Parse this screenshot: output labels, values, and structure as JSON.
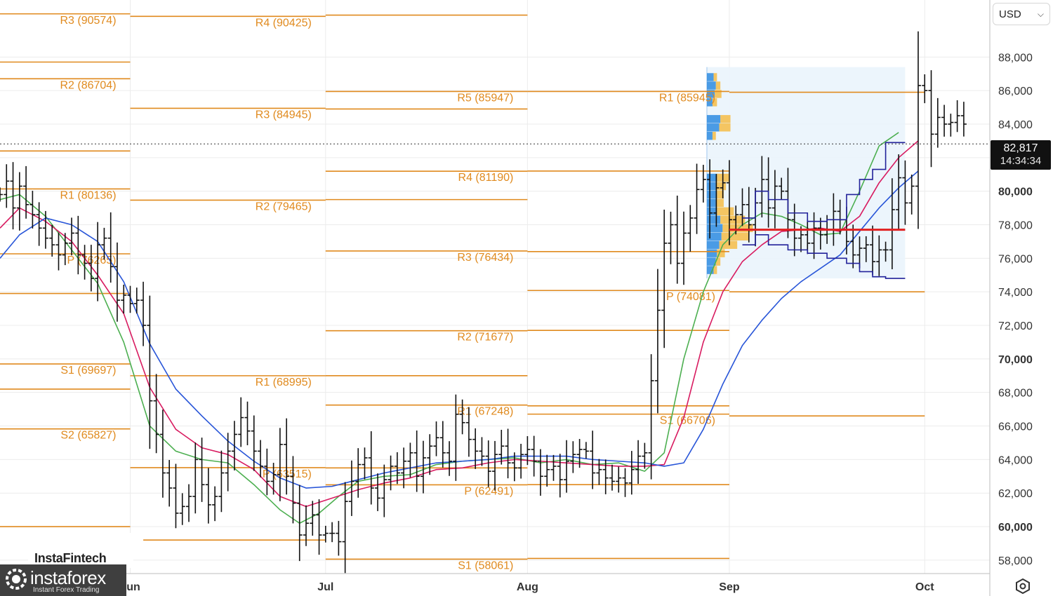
{
  "currency_selector": {
    "value": "USD"
  },
  "current_price": {
    "value": "82,817",
    "countdown": "14:34:34"
  },
  "branding": {
    "top": "InstaFintech",
    "name": "instaforex",
    "tagline": "Instant Forex Trading"
  },
  "colors": {
    "pivot": "#e08a1e",
    "sma_fast": "#4caf50",
    "sma_mid": "#d81b60",
    "sma_slow": "#2855d8",
    "channel": "#22229a",
    "poc": "#e02020",
    "vp_buy": "#2e8be0",
    "vp_sell": "#f6b93b"
  },
  "chart_data": {
    "type": "bar",
    "title": "",
    "y_axis": {
      "ticks": [
        58000,
        60000,
        62000,
        64000,
        66000,
        68000,
        70000,
        72000,
        74000,
        76000,
        78000,
        80000,
        82000,
        84000,
        86000,
        88000
      ],
      "tick_labels": [
        "58,000",
        "60,000",
        "62,000",
        "64,000",
        "66,000",
        "68,000",
        "70,000",
        "72,000",
        "74,000",
        "76,000",
        "78,000",
        "80,000",
        "",
        "84,000",
        "86,000",
        "88,000"
      ],
      "bold": [
        60000,
        70000,
        80000
      ],
      "range": [
        57200,
        91400
      ]
    },
    "x_axis": {
      "ticks": [
        {
          "label": "Jun",
          "day": 31
        },
        {
          "label": "Jul",
          "day": 61
        },
        {
          "label": "Aug",
          "day": 92
        },
        {
          "label": "Sep",
          "day": 123
        },
        {
          "label": "Oct",
          "day": 153
        }
      ],
      "range": [
        11,
        163
      ]
    },
    "pivot_levels": [
      {
        "label": "R3 (90574)",
        "value": 90574,
        "from": 11,
        "to": 31
      },
      {
        "label": "R2 (86704)",
        "value": 86704,
        "from": 11,
        "to": 31
      },
      {
        "label": "R1 (80136)",
        "value": 80136,
        "from": 11,
        "to": 31
      },
      {
        "label": "P (76265)",
        "value": 76265,
        "from": 11,
        "to": 31
      },
      {
        "label": "S1 (69697)",
        "value": 69697,
        "from": 11,
        "to": 31
      },
      {
        "label": "S2 (65827)",
        "value": 65827,
        "from": 11,
        "to": 31
      },
      {
        "label": "R4 (90425)",
        "value": 90425,
        "from": 31,
        "to": 61
      },
      {
        "label": "R3 (84945)",
        "value": 84945,
        "from": 31,
        "to": 61
      },
      {
        "label": "R2 (79465)",
        "value": 79465,
        "from": 31,
        "to": 61
      },
      {
        "label": "R1 (68995)",
        "value": 68995,
        "from": 31,
        "to": 61
      },
      {
        "label": "P (63515)",
        "value": 63515,
        "from": 31,
        "to": 61
      },
      {
        "label": "R5 (85947)",
        "value": 85947,
        "from": 61,
        "to": 92
      },
      {
        "label": "R4 (81190)",
        "value": 81190,
        "from": 61,
        "to": 92
      },
      {
        "label": "R3 (76434)",
        "value": 76434,
        "from": 61,
        "to": 92
      },
      {
        "label": "R2 (71677)",
        "value": 71677,
        "from": 61,
        "to": 92
      },
      {
        "label": "R1 (67248)",
        "value": 67248,
        "from": 61,
        "to": 92
      },
      {
        "label": "P (62491)",
        "value": 62491,
        "from": 61,
        "to": 92
      },
      {
        "label": "S1 (58061)",
        "value": 58061,
        "from": 61,
        "to": 92
      },
      {
        "label": "R1 (85945)",
        "value": 85945,
        "from": 92,
        "to": 123
      },
      {
        "label": "P (74081)",
        "value": 74081,
        "from": 92,
        "to": 123
      },
      {
        "label": "S1 (66706)",
        "value": 66706,
        "from": 92,
        "to": 123
      }
    ],
    "unlabeled_levels": [
      {
        "value": 87700,
        "from": 11,
        "to": 31
      },
      {
        "value": 82400,
        "from": 11,
        "to": 31
      },
      {
        "value": 73900,
        "from": 11,
        "to": 31
      },
      {
        "value": 68200,
        "from": 11,
        "to": 31
      },
      {
        "value": 60000,
        "from": 11,
        "to": 31
      },
      {
        "value": 59200,
        "from": 33,
        "to": 61
      },
      {
        "value": 90500,
        "from": 61,
        "to": 92
      },
      {
        "value": 84900,
        "from": 61,
        "to": 92
      },
      {
        "value": 79500,
        "from": 61,
        "to": 92
      },
      {
        "value": 69000,
        "from": 61,
        "to": 92
      },
      {
        "value": 63500,
        "from": 61,
        "to": 92
      },
      {
        "value": 81200,
        "from": 92,
        "to": 123
      },
      {
        "value": 76400,
        "from": 92,
        "to": 123
      },
      {
        "value": 71700,
        "from": 92,
        "to": 123
      },
      {
        "value": 67200,
        "from": 92,
        "to": 123
      },
      {
        "value": 62500,
        "from": 92,
        "to": 123
      },
      {
        "value": 58100,
        "from": 92,
        "to": 123
      },
      {
        "value": 85900,
        "from": 123,
        "to": 153
      },
      {
        "value": 74000,
        "from": 123,
        "to": 153
      },
      {
        "value": 66600,
        "from": 123,
        "to": 153
      }
    ],
    "ohlc_close": [
      79800,
      80600,
      79000,
      80300,
      79200,
      78600,
      77800,
      77200,
      76800,
      76200,
      76900,
      77500,
      76200,
      75700,
      74800,
      76800,
      77200,
      75500,
      73500,
      73800,
      73300,
      73500,
      72000,
      67500,
      65500,
      63200,
      62300,
      60800,
      61200,
      61800,
      64000,
      62500,
      61300,
      61800,
      63200,
      64500,
      65500,
      66500,
      65700,
      64500,
      63600,
      62700,
      63100,
      64900,
      63000,
      61400,
      59500,
      60200,
      60700,
      59500,
      59600,
      59600,
      59100,
      61500,
      62700,
      63700,
      64100,
      62300,
      61700,
      62800,
      63600,
      63200,
      63900,
      64400,
      63000,
      64100,
      64800,
      65300,
      64400,
      63900,
      66700,
      66200,
      65200,
      64500,
      64200,
      63300,
      64300,
      64800,
      63800,
      63500,
      64300,
      64600,
      63900,
      63000,
      63400,
      63600,
      62800,
      63900,
      64300,
      64600,
      64500,
      63200,
      63400,
      62900,
      62700,
      62900,
      62600,
      63400,
      64200,
      64400,
      68700,
      72900,
      76900,
      78000,
      75700,
      77500,
      78400,
      80100,
      80700,
      78700,
      80200,
      80500,
      78300,
      78600,
      79200,
      78000,
      79300,
      80700,
      79000,
      80300,
      80000,
      78300,
      77200,
      77400,
      76900,
      77800,
      77400,
      77700,
      78800,
      78300,
      77000,
      76200,
      76600,
      76800,
      75800,
      76500,
      76500,
      78900,
      80800,
      79300,
      80300,
      86300,
      86000,
      83400,
      84400,
      84000,
      84100,
      84500,
      84000
    ],
    "series": [
      {
        "name": "",
        "key": "sma_fast",
        "points": [
          [
            11,
            79500
          ],
          [
            14,
            79800
          ],
          [
            18,
            78500
          ],
          [
            22,
            76500
          ],
          [
            26,
            74500
          ],
          [
            30,
            71000
          ],
          [
            34,
            66000
          ],
          [
            38,
            64500
          ],
          [
            42,
            64000
          ],
          [
            46,
            63800
          ],
          [
            50,
            62500
          ],
          [
            54,
            61000
          ],
          [
            57,
            60200
          ],
          [
            60,
            60800
          ],
          [
            63,
            61800
          ],
          [
            66,
            62700
          ],
          [
            70,
            63000
          ],
          [
            74,
            63100
          ],
          [
            78,
            63700
          ],
          [
            82,
            63900
          ],
          [
            86,
            64000
          ],
          [
            90,
            64100
          ],
          [
            94,
            63800
          ],
          [
            98,
            64000
          ],
          [
            102,
            63700
          ],
          [
            106,
            63800
          ],
          [
            110,
            63300
          ],
          [
            113,
            64400
          ],
          [
            116,
            70000
          ],
          [
            119,
            74000
          ],
          [
            122,
            76800
          ],
          [
            125,
            78000
          ],
          [
            128,
            78700
          ],
          [
            131,
            78500
          ],
          [
            134,
            78000
          ],
          [
            137,
            77400
          ],
          [
            140,
            77500
          ],
          [
            143,
            80000
          ],
          [
            146,
            82700
          ],
          [
            149,
            83500
          ]
        ]
      },
      {
        "name": "",
        "key": "sma_mid",
        "points": [
          [
            11,
            77800
          ],
          [
            14,
            79000
          ],
          [
            18,
            78200
          ],
          [
            22,
            77000
          ],
          [
            26,
            75000
          ],
          [
            30,
            72700
          ],
          [
            34,
            68300
          ],
          [
            38,
            65800
          ],
          [
            42,
            64700
          ],
          [
            46,
            64300
          ],
          [
            50,
            63400
          ],
          [
            54,
            61800
          ],
          [
            58,
            61200
          ],
          [
            62,
            61700
          ],
          [
            66,
            62200
          ],
          [
            70,
            62600
          ],
          [
            74,
            62900
          ],
          [
            78,
            63400
          ],
          [
            82,
            63500
          ],
          [
            86,
            63800
          ],
          [
            90,
            64000
          ],
          [
            94,
            63900
          ],
          [
            98,
            63800
          ],
          [
            102,
            63700
          ],
          [
            106,
            63600
          ],
          [
            110,
            63600
          ],
          [
            113,
            63700
          ],
          [
            116,
            66500
          ],
          [
            119,
            71000
          ],
          [
            122,
            74000
          ],
          [
            125,
            75800
          ],
          [
            128,
            76800
          ],
          [
            131,
            77600
          ],
          [
            134,
            77700
          ],
          [
            137,
            77800
          ],
          [
            140,
            77600
          ],
          [
            143,
            78500
          ],
          [
            146,
            80500
          ],
          [
            149,
            82000
          ],
          [
            152,
            83000
          ]
        ]
      },
      {
        "name": "",
        "key": "sma_slow",
        "points": [
          [
            11,
            76000
          ],
          [
            14,
            77400
          ],
          [
            18,
            78400
          ],
          [
            22,
            78000
          ],
          [
            26,
            77000
          ],
          [
            30,
            74600
          ],
          [
            34,
            70900
          ],
          [
            38,
            68200
          ],
          [
            42,
            66600
          ],
          [
            46,
            65100
          ],
          [
            50,
            63900
          ],
          [
            54,
            62900
          ],
          [
            58,
            62300
          ],
          [
            62,
            62400
          ],
          [
            66,
            62800
          ],
          [
            70,
            63200
          ],
          [
            74,
            63500
          ],
          [
            78,
            63800
          ],
          [
            82,
            63900
          ],
          [
            86,
            64000
          ],
          [
            90,
            64200
          ],
          [
            94,
            64200
          ],
          [
            98,
            64200
          ],
          [
            102,
            64000
          ],
          [
            106,
            63900
          ],
          [
            110,
            63800
          ],
          [
            113,
            63600
          ],
          [
            116,
            63800
          ],
          [
            119,
            65800
          ],
          [
            122,
            68500
          ],
          [
            125,
            70800
          ],
          [
            128,
            72300
          ],
          [
            131,
            73600
          ],
          [
            134,
            74600
          ],
          [
            137,
            75400
          ],
          [
            140,
            76200
          ],
          [
            143,
            77600
          ],
          [
            146,
            79000
          ],
          [
            149,
            80200
          ],
          [
            152,
            81200
          ]
        ]
      }
    ],
    "channel_upper": [
      [
        125,
        78400
      ],
      [
        127,
        80000
      ],
      [
        129,
        79500
      ],
      [
        132,
        78700
      ],
      [
        135,
        78200
      ],
      [
        138,
        78300
      ],
      [
        141,
        79800
      ],
      [
        143,
        80700
      ],
      [
        145,
        81300
      ],
      [
        147,
        82900
      ],
      [
        150,
        82900
      ]
    ],
    "channel_lower": [
      [
        125,
        76800
      ],
      [
        127,
        77400
      ],
      [
        129,
        76800
      ],
      [
        132,
        76500
      ],
      [
        135,
        76300
      ],
      [
        138,
        76000
      ],
      [
        141,
        75700
      ],
      [
        143,
        75200
      ],
      [
        145,
        74900
      ],
      [
        147,
        74800
      ],
      [
        150,
        74800
      ]
    ],
    "poc": {
      "value": 77700,
      "from": 123,
      "to": 150
    },
    "volume_profile": {
      "from_day": 123,
      "to_day": 150,
      "rows": [
        {
          "price": 86800,
          "buy": 1.2,
          "sell": 0.6
        },
        {
          "price": 86300,
          "buy": 1.6,
          "sell": 0.8
        },
        {
          "price": 85800,
          "buy": 1.4,
          "sell": 1.2
        },
        {
          "price": 85300,
          "buy": 1.0,
          "sell": 0.8
        },
        {
          "price": 84300,
          "buy": 2.4,
          "sell": 1.8
        },
        {
          "price": 83800,
          "buy": 2.2,
          "sell": 2.0
        },
        {
          "price": 83300,
          "buy": 1.0,
          "sell": 0.6
        },
        {
          "price": 80800,
          "buy": 1.8,
          "sell": 2.2
        },
        {
          "price": 80300,
          "buy": 1.6,
          "sell": 1.8
        },
        {
          "price": 79800,
          "buy": 1.8,
          "sell": 1.2
        },
        {
          "price": 79300,
          "buy": 1.6,
          "sell": 1.4
        },
        {
          "price": 78800,
          "buy": 1.8,
          "sell": 3.0
        },
        {
          "price": 78300,
          "buy": 2.4,
          "sell": 4.4
        },
        {
          "price": 77800,
          "buy": 2.8,
          "sell": 5.4
        },
        {
          "price": 77300,
          "buy": 2.6,
          "sell": 4.8
        },
        {
          "price": 76800,
          "buy": 2.2,
          "sell": 3.2
        },
        {
          "price": 76300,
          "buy": 1.8,
          "sell": 1.4
        },
        {
          "price": 75800,
          "buy": 1.6,
          "sell": 0.8
        },
        {
          "price": 75300,
          "buy": 1.2,
          "sell": 0.6
        }
      ]
    }
  }
}
